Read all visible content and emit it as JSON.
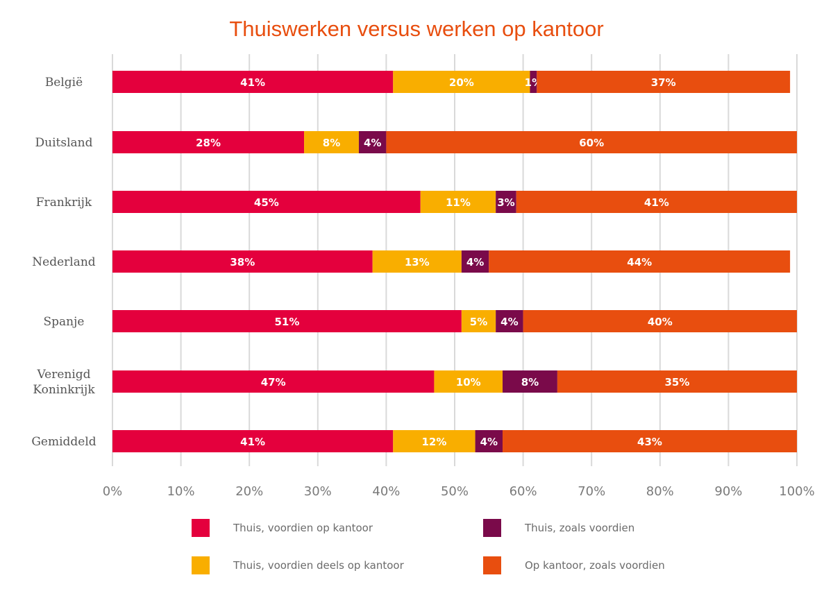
{
  "chart_data": {
    "type": "bar",
    "orientation": "horizontal",
    "stacked": true,
    "title": "Thuiswerken versus werken op kantoor",
    "categories": [
      "België",
      "Duitsland",
      "Frankrijk",
      "Nederland",
      "Spanje",
      "Verenigd Koninkrijk",
      "Gemiddeld"
    ],
    "series": [
      {
        "name": "Thuis, voordien op kantoor",
        "color": "#e4003d",
        "values": [
          41,
          28,
          45,
          38,
          51,
          47,
          41
        ],
        "labels": [
          "41%",
          "28%",
          "45%",
          "38%",
          "51%",
          "47%",
          "41%"
        ]
      },
      {
        "name": "Thuis, voordien deels op kantoor",
        "color": "#f9ae00",
        "values": [
          20,
          8,
          11,
          13,
          5,
          10,
          12
        ],
        "labels": [
          "20%",
          "8%",
          "11%",
          "13%",
          "5%",
          "10%",
          "12%"
        ]
      },
      {
        "name": "Thuis, zoals voordien",
        "color": "#7a0a4a",
        "values": [
          1,
          4,
          3,
          4,
          4,
          8,
          4
        ],
        "labels": [
          "1%",
          "4%",
          "3%",
          "4%",
          "4%",
          "8%",
          "4%"
        ]
      },
      {
        "name": "Op kantoor, zoals voordien",
        "color": "#e84e0f",
        "values": [
          37,
          60,
          41,
          44,
          40,
          35,
          43
        ],
        "labels": [
          "37%",
          "60%",
          "41%",
          "44%",
          "40%",
          "35%",
          "43%"
        ]
      }
    ],
    "xlim": [
      0,
      100
    ],
    "x_ticks": [
      "0%",
      "10%",
      "20%",
      "30%",
      "40%",
      "50%",
      "60%",
      "70%",
      "80%",
      "90%",
      "100%"
    ],
    "grid": "vertical",
    "legend_position": "bottom",
    "title_color": "#e84e0f"
  }
}
